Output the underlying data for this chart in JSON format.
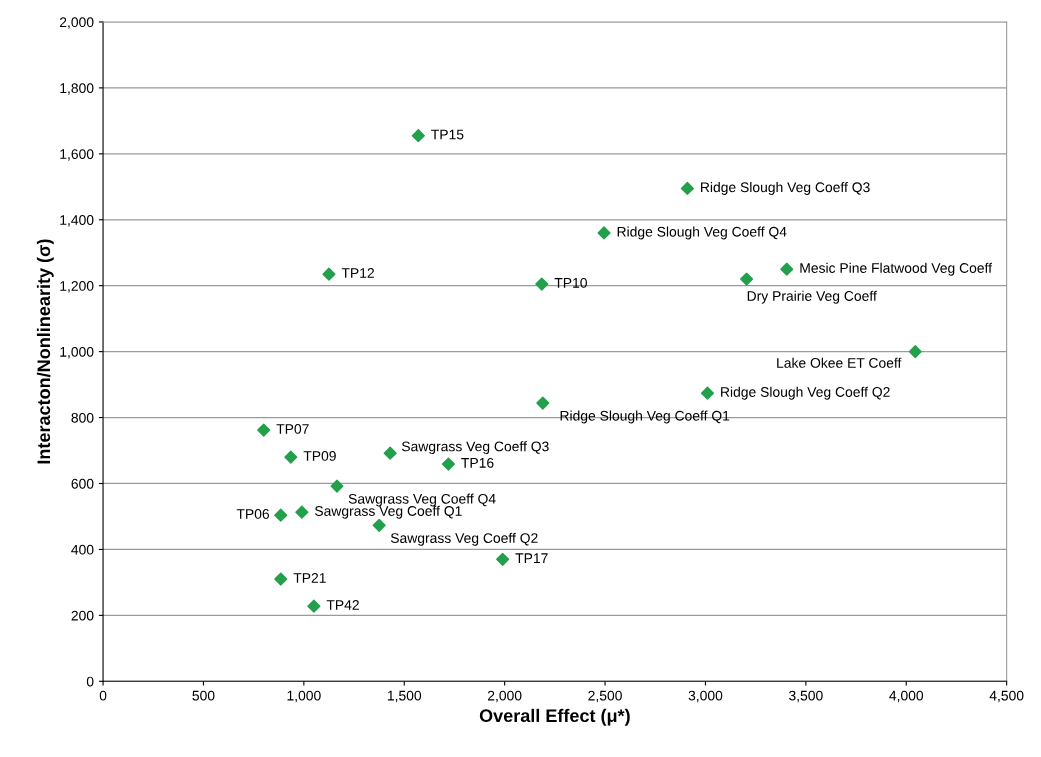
{
  "chart_data": {
    "type": "scatter",
    "xlabel": "Overall Effect (μ*)",
    "ylabel": "Interacton/Nonlinearity (σ)",
    "xlim": [
      0,
      4500
    ],
    "xticks": [
      {
        "value": 0,
        "label": "0"
      },
      {
        "value": 500,
        "label": "500"
      },
      {
        "value": 1000,
        "label": "1,000"
      },
      {
        "value": 1500,
        "label": "1,500"
      },
      {
        "value": 2000,
        "label": "2,000"
      },
      {
        "value": 2500,
        "label": "2,500"
      },
      {
        "value": 3000,
        "label": "3,000"
      },
      {
        "value": 3500,
        "label": "3,500"
      },
      {
        "value": 4000,
        "label": "4,000"
      },
      {
        "value": 4500,
        "label": "4,500"
      }
    ],
    "ylim": [
      0,
      2000
    ],
    "yticks": [
      {
        "value": 0,
        "label": "0"
      },
      {
        "value": 200,
        "label": "200"
      },
      {
        "value": 400,
        "label": "400"
      },
      {
        "value": 600,
        "label": "600"
      },
      {
        "value": 800,
        "label": "800"
      },
      {
        "value": 1000,
        "label": "1,000"
      },
      {
        "value": 1200,
        "label": "1,200"
      },
      {
        "value": 1400,
        "label": "1,400"
      },
      {
        "value": 1600,
        "label": "1,600"
      },
      {
        "value": 1800,
        "label": "1,800"
      },
      {
        "value": 2000,
        "label": "2,000"
      }
    ],
    "grid": "y",
    "marker": "diamond",
    "legend": false,
    "series": [
      {
        "color": "#22a04b",
        "x": [
          1570,
          2910,
          2495,
          3405,
          3205,
          1125,
          2185,
          4045,
          3010,
          2190,
          800,
          935,
          1430,
          1720,
          1165,
          885,
          990,
          1375,
          1990,
          885,
          1050
        ],
        "values": [
          1655,
          1495,
          1360,
          1250,
          1220,
          1235,
          1205,
          1000,
          874,
          844,
          762,
          680,
          692,
          659,
          592,
          504,
          513,
          473,
          370,
          310,
          228
        ]
      }
    ],
    "annotations": [
      {
        "text": "TP15",
        "x": 1570,
        "y": 1655
      },
      {
        "text": "Ridge Slough Veg Coeff Q3",
        "x": 2910,
        "y": 1495
      },
      {
        "text": "Ridge Slough Veg Coeff Q4",
        "x": 2495,
        "y": 1360
      },
      {
        "text": "Mesic Pine Flatwood Veg Coeff",
        "x": 3405,
        "y": 1250
      },
      {
        "text": "Dry Prairie Veg Coeff",
        "x": 3205,
        "y": 1220
      },
      {
        "text": "TP12",
        "x": 1125,
        "y": 1235
      },
      {
        "text": "TP10",
        "x": 2185,
        "y": 1205
      },
      {
        "text": "Lake Okee ET Coeff",
        "x": 4045,
        "y": 1000
      },
      {
        "text": "Ridge Slough Veg Coeff Q2",
        "x": 3010,
        "y": 874
      },
      {
        "text": "Ridge Slough Veg Coeff Q1",
        "x": 2190,
        "y": 844
      },
      {
        "text": "TP07",
        "x": 800,
        "y": 762
      },
      {
        "text": "TP09",
        "x": 935,
        "y": 680
      },
      {
        "text": "Sawgrass Veg Coeff Q3",
        "x": 1430,
        "y": 692
      },
      {
        "text": "TP16",
        "x": 1720,
        "y": 659
      },
      {
        "text": "Sawgrass Veg Coeff Q4",
        "x": 1165,
        "y": 592
      },
      {
        "text": "TP06",
        "x": 885,
        "y": 504
      },
      {
        "text": "Sawgrass Veg Coeff Q1",
        "x": 990,
        "y": 513
      },
      {
        "text": "Sawgrass Veg Coeff Q2",
        "x": 1375,
        "y": 473
      },
      {
        "text": "TP17",
        "x": 1990,
        "y": 370
      },
      {
        "text": "TP21",
        "x": 885,
        "y": 310
      },
      {
        "text": "TP42",
        "x": 1050,
        "y": 228
      }
    ]
  }
}
